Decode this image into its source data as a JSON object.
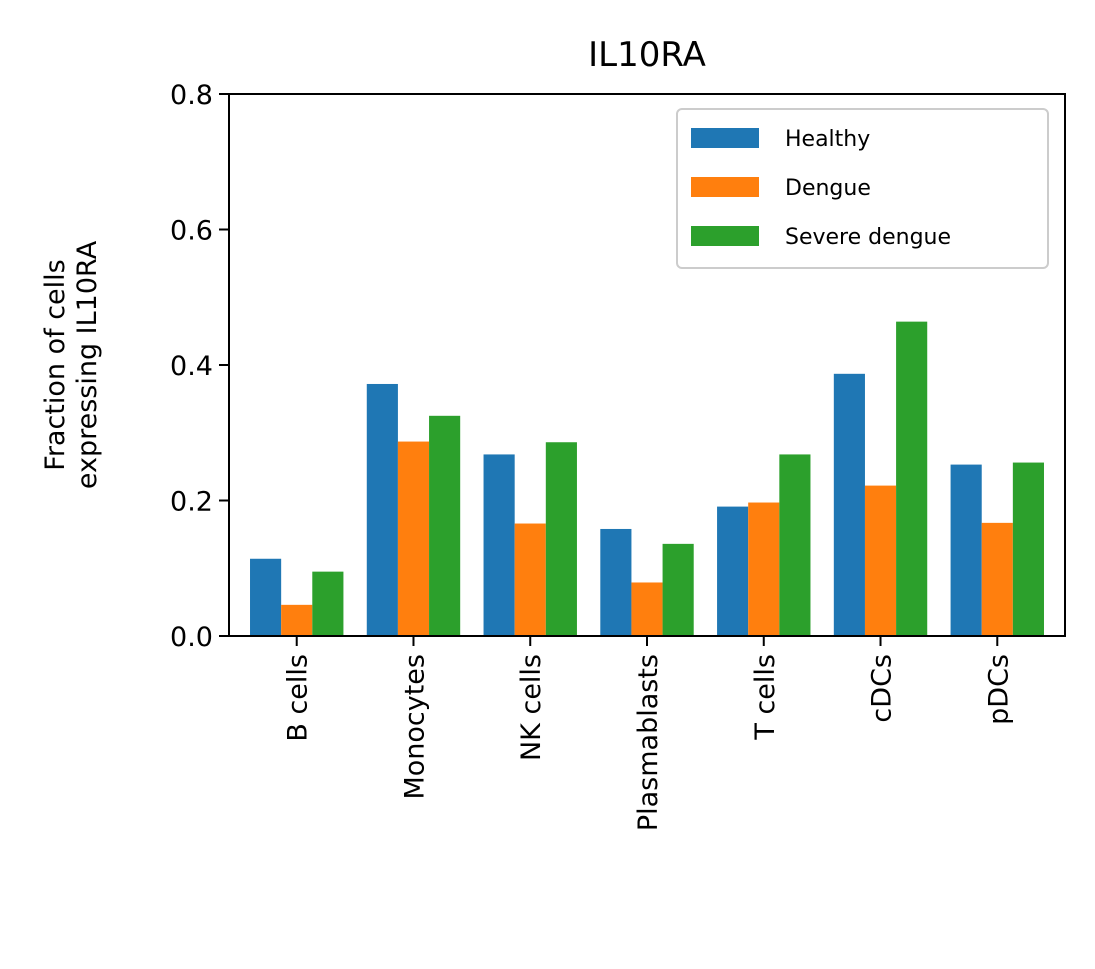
{
  "chart_data": {
    "type": "bar",
    "title": "IL10RA",
    "xlabel": "",
    "ylabel": "Fraction of cells\nexpressing IL10RA",
    "ylim": [
      0,
      0.8
    ],
    "yticks": [
      0.0,
      0.2,
      0.4,
      0.6,
      0.8
    ],
    "ytick_labels": [
      "0.0",
      "0.2",
      "0.4",
      "0.6",
      "0.8"
    ],
    "categories": [
      "B cells",
      "Monocytes",
      "NK cells",
      "Plasmablasts",
      "T cells",
      "cDCs",
      "pDCs"
    ],
    "series": [
      {
        "name": "Healthy",
        "color": "#1f77b4",
        "values": [
          0.114,
          0.372,
          0.268,
          0.158,
          0.191,
          0.387,
          0.253
        ]
      },
      {
        "name": "Dengue",
        "color": "#ff7f0e",
        "values": [
          0.046,
          0.287,
          0.166,
          0.079,
          0.197,
          0.222,
          0.167
        ]
      },
      {
        "name": "Severe dengue",
        "color": "#2ca02c",
        "values": [
          0.095,
          0.325,
          0.286,
          0.136,
          0.268,
          0.464,
          0.256
        ]
      }
    ],
    "grid": false,
    "legend": "top-right"
  }
}
